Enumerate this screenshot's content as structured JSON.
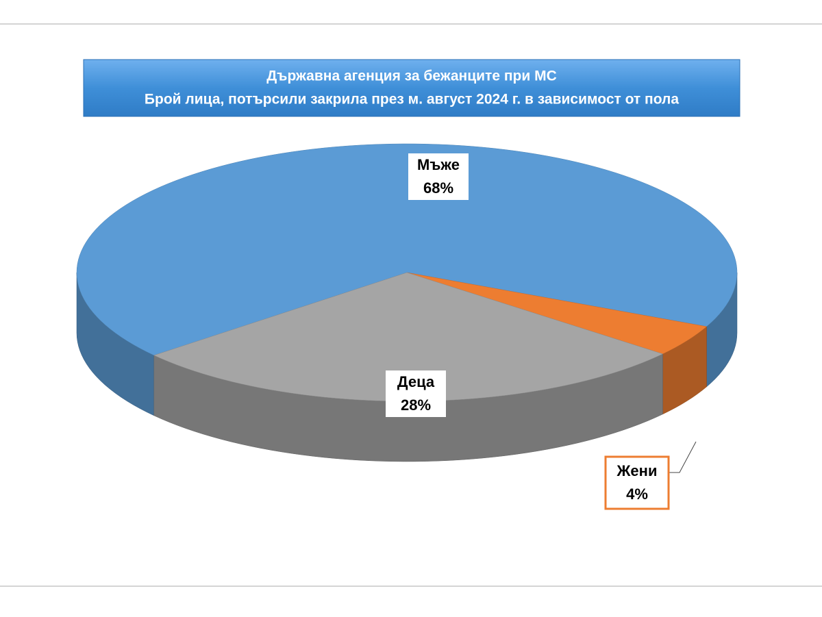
{
  "chart_data": {
    "type": "pie3d",
    "title": "Държавна агенция за бежанците при МС",
    "subtitle": "Брой лица, потърсили закрила през м. август 2024 г. в зависимост от пола",
    "categories": [
      "Мъже",
      "Жени",
      "Деца"
    ],
    "values": [
      68,
      4,
      28
    ],
    "value_labels": [
      "68%",
      "4%",
      "28%"
    ],
    "colors": [
      "#5b9bd5",
      "#ed7d31",
      "#a5a5a5"
    ]
  }
}
